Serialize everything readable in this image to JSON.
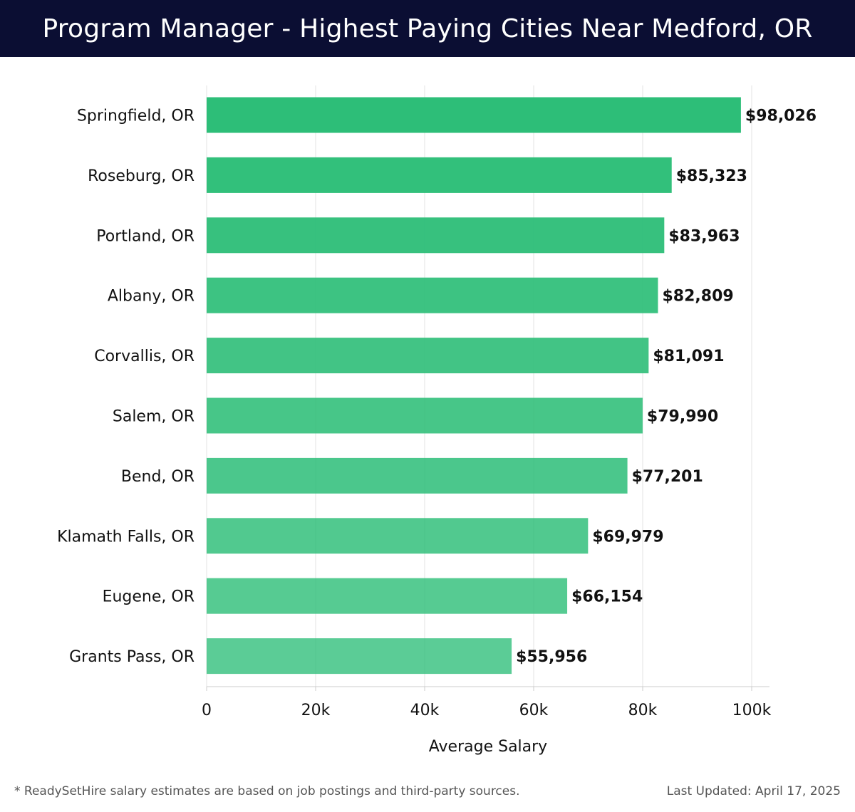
{
  "header": {
    "title": "Program Manager - Highest Paying Cities Near Medford, OR"
  },
  "chart_data": {
    "type": "bar",
    "orientation": "horizontal",
    "title": "Program Manager - Highest Paying Cities Near Medford, OR",
    "xlabel": "Average Salary",
    "ylabel": "",
    "xlim": [
      0,
      103000
    ],
    "grid": true,
    "categories": [
      "Springfield, OR",
      "Roseburg, OR",
      "Portland, OR",
      "Albany, OR",
      "Corvallis, OR",
      "Salem, OR",
      "Bend, OR",
      "Klamath Falls, OR",
      "Eugene, OR",
      "Grants Pass, OR"
    ],
    "values": [
      98026,
      85323,
      83963,
      82809,
      81091,
      79990,
      77201,
      69979,
      66154,
      55956
    ],
    "value_labels": [
      "$98,026",
      "$85,323",
      "$83,963",
      "$82,809",
      "$81,091",
      "$79,990",
      "$77,201",
      "$69,979",
      "$66,154",
      "$55,956"
    ],
    "x_ticks": [
      0,
      20000,
      40000,
      60000,
      80000,
      100000
    ],
    "x_tick_labels": [
      "0",
      "20k",
      "40k",
      "60k",
      "80k",
      "100k"
    ],
    "bar_color": "#2dbe78"
  },
  "footer": {
    "note": "* ReadySetHire salary estimates are based on job postings and third-party sources.",
    "updated": "Last Updated: April 17, 2025"
  }
}
